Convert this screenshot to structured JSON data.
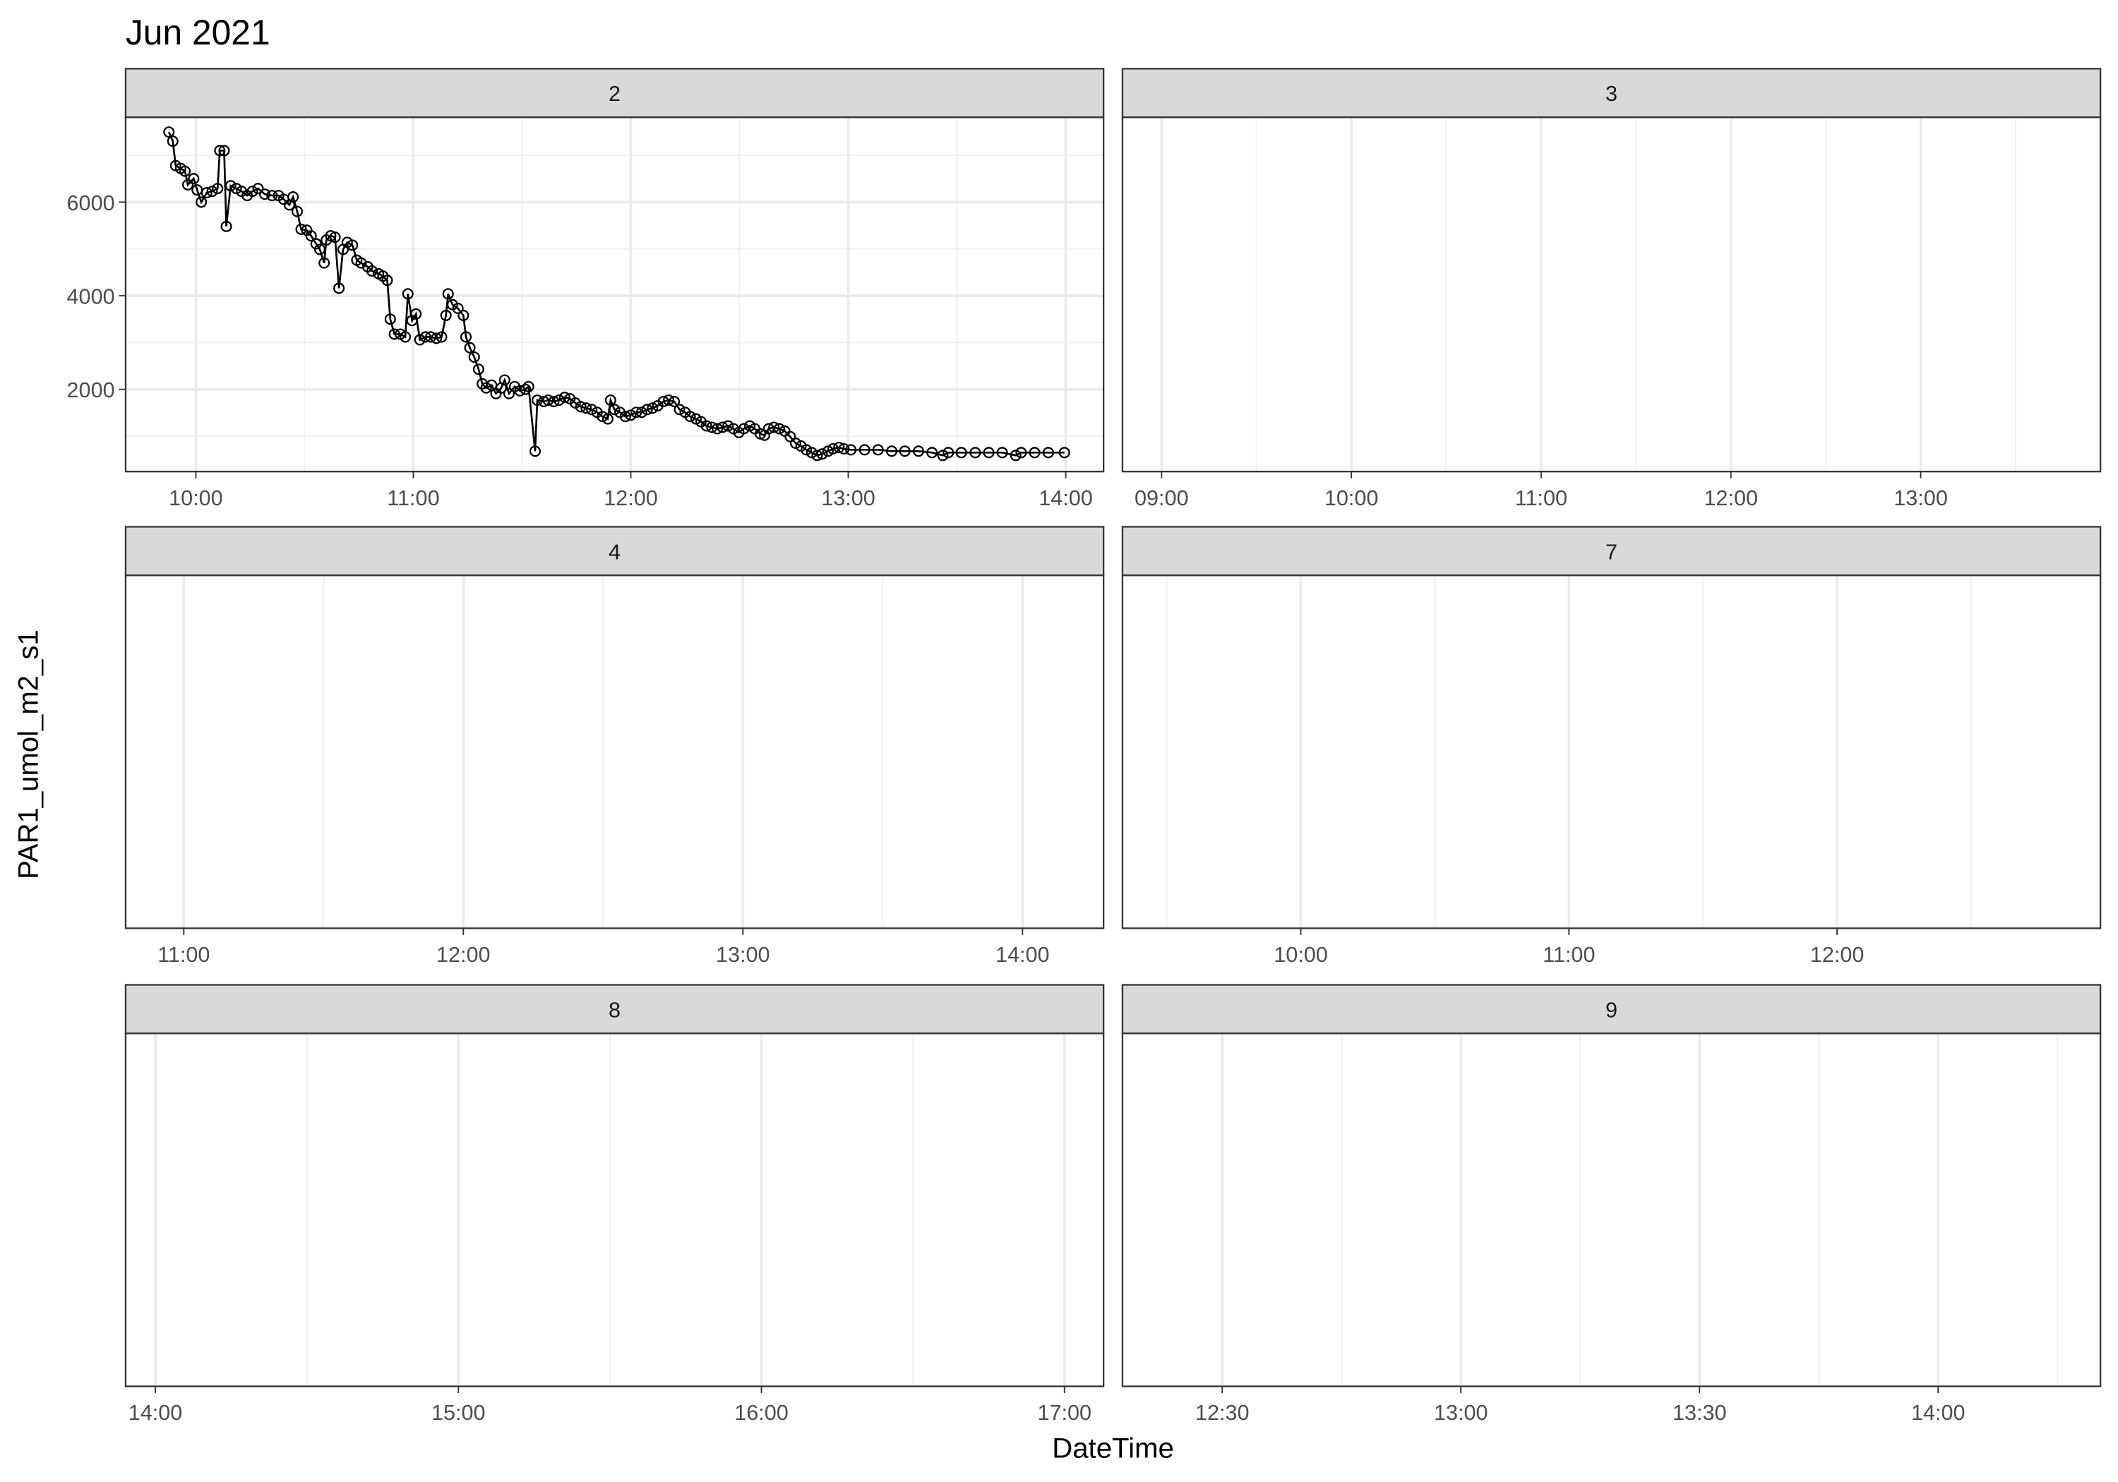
{
  "chart_data": {
    "type": "line",
    "title": "Jun 2021",
    "x_label": "DateTime",
    "y_label": "PAR1_umol_m2_s1",
    "grid": true,
    "color": "#000000",
    "panels": [
      {
        "strip": "2",
        "xlim": [
          9.677,
          14.174
        ],
        "xticks": [
          {
            "value": 10,
            "label": "10:00"
          },
          {
            "value": 11,
            "label": "11:00"
          },
          {
            "value": 12,
            "label": "12:00"
          },
          {
            "value": 13,
            "label": "13:00"
          },
          {
            "value": 14,
            "label": "14:00"
          }
        ],
        "minor_xticks": [
          10.5,
          11.5,
          12.5,
          13.5
        ],
        "ylim": [
          245,
          7813
        ],
        "yticks": [
          2000,
          4000,
          6000
        ],
        "minor_yticks": [
          1000,
          3000,
          5000,
          7000
        ],
        "x": [
          9.876,
          9.894,
          9.907,
          9.93,
          9.95,
          9.963,
          9.99,
          10.006,
          10.025,
          10.05,
          10.075,
          10.1,
          10.11,
          10.13,
          10.14,
          10.16,
          10.186,
          10.21,
          10.236,
          10.26,
          10.286,
          10.317,
          10.35,
          10.38,
          10.404,
          10.43,
          10.447,
          10.466,
          10.484,
          10.51,
          10.53,
          10.553,
          10.57,
          10.59,
          10.6,
          10.62,
          10.64,
          10.658,
          10.677,
          10.696,
          10.72,
          10.74,
          10.76,
          10.79,
          10.81,
          10.84,
          10.86,
          10.88,
          10.894,
          10.913,
          10.94,
          10.963,
          10.975,
          10.994,
          11.012,
          11.03,
          11.056,
          11.08,
          11.106,
          11.13,
          11.15,
          11.16,
          11.18,
          11.205,
          11.23,
          11.242,
          11.26,
          11.28,
          11.3,
          11.317,
          11.335,
          11.36,
          11.38,
          11.404,
          11.42,
          11.44,
          11.466,
          11.49,
          11.516,
          11.53,
          11.56,
          11.57,
          11.6,
          11.62,
          11.646,
          11.67,
          11.696,
          11.72,
          11.745,
          11.77,
          11.795,
          11.82,
          11.845,
          11.87,
          11.894,
          11.907,
          11.925,
          11.95,
          11.975,
          12.0,
          12.025,
          12.05,
          12.075,
          12.1,
          12.124,
          12.15,
          12.174,
          12.2,
          12.224,
          12.25,
          12.273,
          12.3,
          12.323,
          12.348,
          12.373,
          12.398,
          12.422,
          12.447,
          12.472,
          12.497,
          12.52,
          12.547,
          12.57,
          12.596,
          12.615,
          12.634,
          12.658,
          12.683,
          12.708,
          12.733,
          12.758,
          12.783,
          12.807,
          12.832,
          12.857,
          12.88,
          12.907,
          12.93,
          12.957,
          12.98,
          13.012,
          13.075,
          13.137,
          13.2,
          13.26,
          13.323,
          13.385,
          13.435,
          13.46,
          13.52,
          13.584,
          13.646,
          13.708,
          13.77,
          13.795,
          13.857,
          13.92,
          13.994
        ],
        "values": [
          7496,
          7300,
          6780,
          6720,
          6660,
          6370,
          6500,
          6260,
          6000,
          6200,
          6230,
          6290,
          7100,
          7100,
          5480,
          6350,
          6290,
          6230,
          6140,
          6230,
          6290,
          6170,
          6140,
          6140,
          6060,
          5940,
          6110,
          5800,
          5420,
          5400,
          5280,
          5110,
          4990,
          4700,
          5190,
          5280,
          5250,
          4160,
          4990,
          5140,
          5080,
          4760,
          4700,
          4620,
          4530,
          4470,
          4420,
          4330,
          3500,
          3180,
          3180,
          3120,
          4040,
          3470,
          3610,
          3060,
          3120,
          3120,
          3090,
          3120,
          3580,
          4040,
          3810,
          3730,
          3580,
          3120,
          2890,
          2690,
          2430,
          2120,
          2030,
          2090,
          1910,
          2030,
          2200,
          1910,
          2060,
          1970,
          2000,
          2060,
          680,
          1770,
          1740,
          1770,
          1740,
          1770,
          1830,
          1800,
          1710,
          1630,
          1600,
          1570,
          1510,
          1420,
          1370,
          1770,
          1570,
          1510,
          1420,
          1450,
          1510,
          1510,
          1570,
          1600,
          1650,
          1740,
          1770,
          1740,
          1570,
          1510,
          1420,
          1370,
          1310,
          1220,
          1190,
          1160,
          1190,
          1220,
          1160,
          1080,
          1160,
          1220,
          1160,
          1050,
          1020,
          1160,
          1190,
          1160,
          1110,
          990,
          850,
          790,
          710,
          650,
          590,
          620,
          680,
          730,
          760,
          730,
          710,
          710,
          710,
          680,
          680,
          680,
          650,
          590,
          650,
          650,
          650,
          650,
          650,
          590,
          650,
          650,
          650,
          650
        ]
      },
      {
        "strip": "3",
        "xlim": [
          8.794,
          13.947
        ],
        "xticks": [
          {
            "value": 9,
            "label": "09:00"
          },
          {
            "value": 10,
            "label": "10:00"
          },
          {
            "value": 11,
            "label": "11:00"
          },
          {
            "value": 12,
            "label": "12:00"
          },
          {
            "value": 13,
            "label": "13:00"
          }
        ],
        "minor_xticks": [
          9.5,
          10.5,
          11.5,
          12.5,
          13.5
        ]
      },
      {
        "strip": "4",
        "xlim": [
          10.792,
          14.29
        ],
        "xticks": [
          {
            "value": 11,
            "label": "11:00"
          },
          {
            "value": 12,
            "label": "12:00"
          },
          {
            "value": 13,
            "label": "13:00"
          },
          {
            "value": 14,
            "label": "14:00"
          }
        ],
        "minor_xticks": [
          11.5,
          12.5,
          13.5
        ]
      },
      {
        "strip": "7",
        "xlim": [
          9.335,
          12.982
        ],
        "xticks": [
          {
            "value": 10,
            "label": "10:00"
          },
          {
            "value": 11,
            "label": "11:00"
          },
          {
            "value": 12,
            "label": "12:00"
          }
        ],
        "minor_xticks": [
          9.5,
          10.5,
          11.5,
          12.5
        ]
      },
      {
        "strip": "8",
        "xlim": [
          13.902,
          17.129
        ],
        "xticks": [
          {
            "value": 14,
            "label": "14:00"
          },
          {
            "value": 15,
            "label": "15:00"
          },
          {
            "value": 16,
            "label": "16:00"
          },
          {
            "value": 17,
            "label": "17:00"
          }
        ],
        "minor_xticks": [
          14.5,
          15.5,
          16.5
        ]
      },
      {
        "strip": "9",
        "xlim": [
          12.291,
          14.34
        ],
        "xticks": [
          {
            "value": 12.5,
            "label": "12:30"
          },
          {
            "value": 13,
            "label": "13:00"
          },
          {
            "value": 13.5,
            "label": "13:30"
          },
          {
            "value": 14,
            "label": "14:00"
          }
        ],
        "minor_xticks": [
          12.75,
          13.25,
          13.75,
          14.25
        ]
      }
    ]
  }
}
